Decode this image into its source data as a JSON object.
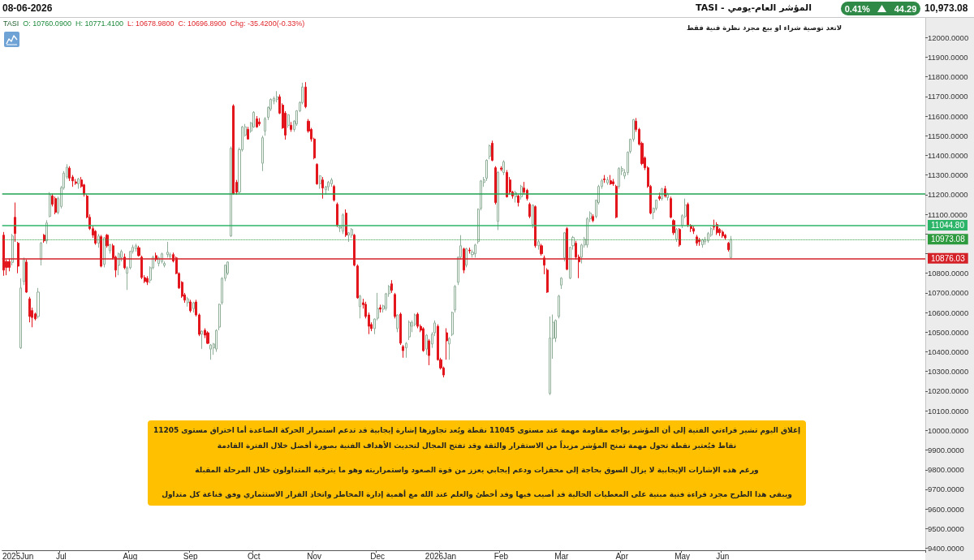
{
  "chart_data": {
    "type": "candlestick",
    "title": "المؤشر العام-يومي - TASI",
    "categories": [
      null,
      null,
      null,
      null,
      null,
      "2025Jun",
      null,
      null,
      null,
      null,
      null,
      null,
      null,
      null,
      null,
      null,
      null,
      null,
      null,
      null,
      "Jul",
      null,
      null,
      null,
      null,
      null,
      null,
      null,
      null,
      null,
      null,
      null,
      null,
      null,
      null,
      null,
      null,
      null,
      null,
      null,
      null,
      null,
      null,
      null,
      "Aug",
      null,
      null,
      null,
      null,
      null,
      null,
      null,
      null,
      null,
      null,
      null,
      null,
      null,
      null,
      null,
      null,
      null,
      null,
      null,
      null,
      "Sep",
      null,
      null,
      null,
      null,
      null,
      null,
      null,
      null,
      null,
      null,
      null,
      null,
      null,
      null,
      null,
      null,
      null,
      null,
      null,
      null,
      null,
      "Oct",
      null,
      null,
      null,
      null,
      null,
      null,
      null,
      null,
      null,
      null,
      null,
      null,
      null,
      null,
      null,
      null,
      null,
      null,
      null,
      null,
      "Nov",
      null,
      null,
      null,
      null,
      null,
      null,
      null,
      null,
      null,
      null,
      null,
      null,
      null,
      null,
      null,
      null,
      null,
      null,
      null,
      null,
      null,
      "Dec",
      null,
      null,
      null,
      null,
      null,
      null,
      null,
      null,
      null,
      null,
      null,
      null,
      null,
      null,
      null,
      null,
      null,
      null,
      null,
      null,
      null,
      "2026Jan",
      null,
      null,
      null,
      null,
      null,
      null,
      null,
      null,
      null,
      null,
      null,
      null,
      null,
      null,
      null,
      null,
      null,
      null,
      null,
      null,
      "Feb",
      null,
      null,
      null,
      null,
      null,
      null,
      null,
      null,
      null,
      null,
      null,
      null,
      null,
      null,
      null,
      null,
      null,
      null,
      null,
      null,
      "Mar",
      null,
      null,
      null,
      null,
      null,
      null,
      null,
      null,
      null,
      null,
      null,
      null,
      null,
      null,
      null,
      null,
      null,
      null,
      null,
      null,
      "Apr",
      null,
      null,
      null,
      null,
      null,
      null,
      null,
      null,
      null,
      null,
      null,
      null,
      null,
      null,
      null,
      null,
      null,
      null,
      null,
      null,
      "May",
      null,
      null,
      null,
      null,
      null,
      null,
      null,
      null,
      null,
      null,
      null,
      null,
      null,
      "Jun",
      null,
      null,
      null,
      null,
      null,
      null,
      null,
      null,
      null,
      null,
      null,
      null,
      null,
      null,
      null,
      null,
      null,
      null,
      null,
      null,
      null,
      null,
      null,
      null,
      null,
      null,
      null,
      null,
      null,
      null,
      null,
      null,
      null,
      null,
      null,
      null,
      null,
      null,
      null,
      null,
      null,
      null,
      null,
      null,
      null,
      null,
      null,
      null,
      null,
      null,
      null,
      null,
      null,
      null,
      null,
      null,
      null,
      null,
      null,
      null,
      null,
      null,
      null,
      null,
      null,
      null,
      null,
      null,
      null,
      null
    ],
    "ohlc": [
      [
        10994,
        11010,
        10787,
        10816
      ],
      [
        10860,
        10870,
        10790,
        10830
      ],
      [
        10860,
        10875,
        10810,
        10830
      ],
      [
        10855,
        11000,
        10840,
        10990
      ],
      [
        11085,
        11160,
        10960,
        11002
      ],
      [
        10953,
        10960,
        10800,
        10836
      ],
      [
        10420,
        10774,
        10415,
        10725
      ],
      [
        10758,
        10880,
        10740,
        10870
      ],
      [
        10857,
        10870,
        10700,
        10704
      ],
      [
        10670,
        10680,
        10550,
        10580
      ],
      [
        10610,
        10625,
        10525,
        10575
      ],
      [
        10593,
        10600,
        10560,
        10568
      ],
      [
        10580,
        10725,
        10570,
        10704
      ],
      [
        10870,
        10960,
        10840,
        10953
      ],
      [
        10994,
        11000,
        10955,
        10965
      ],
      [
        10965,
        11070,
        10950,
        11056
      ],
      [
        11089,
        11213,
        11085,
        11200
      ],
      [
        11193,
        11205,
        11140,
        11151
      ],
      [
        11180,
        11190,
        11100,
        11110
      ],
      [
        11110,
        11190,
        11100,
        11180
      ],
      [
        11140,
        11245,
        11130,
        11235
      ],
      [
        11235,
        11320,
        11225,
        11310
      ],
      [
        11290,
        11355,
        11280,
        11340
      ],
      [
        11335,
        11345,
        11270,
        11284
      ],
      [
        11290,
        11300,
        11240,
        11270
      ],
      [
        11265,
        11280,
        11250,
        11258
      ],
      [
        11255,
        11285,
        11230,
        11280
      ],
      [
        11275,
        11290,
        11235,
        11242
      ],
      [
        11250,
        11255,
        11190,
        11201
      ],
      [
        11193,
        11200,
        11080,
        11085
      ],
      [
        11085,
        11100,
        11020,
        11027
      ],
      [
        11027,
        11040,
        10980,
        10994
      ],
      [
        11014,
        11020,
        10945,
        10953
      ],
      [
        10953,
        11000,
        10930,
        10990
      ],
      [
        10986,
        10995,
        10830,
        10836
      ],
      [
        10845,
        10985,
        10830,
        10980
      ],
      [
        10994,
        11000,
        10930,
        10940
      ],
      [
        10915,
        10950,
        10900,
        10945
      ],
      [
        10940,
        10950,
        10870,
        10878
      ],
      [
        10882,
        10890,
        10780,
        10816
      ],
      [
        10840,
        10905,
        10790,
        10899
      ],
      [
        10880,
        10920,
        10860,
        10911
      ],
      [
        10882,
        10900,
        10820,
        10828
      ],
      [
        10800,
        10835,
        10715,
        10828
      ],
      [
        10828,
        10915,
        10820,
        10911
      ],
      [
        10911,
        10945,
        10900,
        10932
      ],
      [
        10925,
        10950,
        10910,
        10940
      ],
      [
        10930,
        10940,
        10885,
        10890
      ],
      [
        10882,
        10890,
        10770,
        10778
      ],
      [
        10778,
        10790,
        10750,
        10758
      ],
      [
        10774,
        10785,
        10740,
        10754
      ],
      [
        10765,
        10835,
        10750,
        10828
      ],
      [
        10828,
        10890,
        10820,
        10882
      ],
      [
        10890,
        10905,
        10860,
        10870
      ],
      [
        10850,
        10885,
        10835,
        10878
      ],
      [
        10860,
        10905,
        10850,
        10899
      ],
      [
        10840,
        10860,
        10830,
        10850
      ],
      [
        10895,
        10960,
        10880,
        10907
      ],
      [
        10885,
        10905,
        10870,
        10895
      ],
      [
        10895,
        10905,
        10855,
        10862
      ],
      [
        10878,
        10885,
        10795,
        10799
      ],
      [
        10799,
        10805,
        10720,
        10725
      ],
      [
        10754,
        10760,
        10675,
        10683
      ],
      [
        10690,
        10700,
        10650,
        10663
      ],
      [
        10650,
        10680,
        10630,
        10670
      ],
      [
        10654,
        10665,
        10600,
        10609
      ],
      [
        10620,
        10655,
        10600,
        10650
      ],
      [
        10654,
        10665,
        10580,
        10588
      ],
      [
        10588,
        10595,
        10480,
        10489
      ],
      [
        10490,
        10510,
        10415,
        10505
      ],
      [
        10510,
        10520,
        10470,
        10485
      ],
      [
        10497,
        10505,
        10440,
        10443
      ],
      [
        10414,
        10440,
        10360,
        10435
      ],
      [
        10420,
        10445,
        10385,
        10440
      ],
      [
        10414,
        10515,
        10400,
        10509
      ],
      [
        10526,
        10645,
        10510,
        10642
      ],
      [
        10650,
        10780,
        10640,
        10774
      ],
      [
        10774,
        10845,
        10760,
        10841
      ],
      [
        10800,
        10860,
        10790,
        10857
      ],
      [
        10990,
        11445,
        10985,
        11436
      ],
      [
        11652,
        11660,
        11200,
        11205
      ],
      [
        11263,
        11275,
        11200,
        11213
      ],
      [
        11213,
        11440,
        11205,
        11429
      ],
      [
        11429,
        11550,
        11420,
        11545
      ],
      [
        11503,
        11560,
        11495,
        11545
      ],
      [
        11532,
        11545,
        11480,
        11483
      ],
      [
        11524,
        11570,
        11515,
        11565
      ],
      [
        11545,
        11625,
        11540,
        11619
      ],
      [
        11586,
        11600,
        11540,
        11545
      ],
      [
        11570,
        11590,
        11550,
        11560
      ],
      [
        11360,
        11500,
        11320,
        11490
      ],
      [
        11524,
        11595,
        11500,
        11586
      ],
      [
        11594,
        11650,
        11580,
        11644
      ],
      [
        11636,
        11690,
        11625,
        11685
      ],
      [
        11677,
        11700,
        11660,
        11690
      ],
      [
        11685,
        11727,
        11670,
        11698
      ],
      [
        11698,
        11710,
        11610,
        11615
      ],
      [
        11656,
        11665,
        11535,
        11540
      ],
      [
        11615,
        11625,
        11480,
        11503
      ],
      [
        11553,
        11610,
        11540,
        11607
      ],
      [
        11553,
        11570,
        11520,
        11532
      ],
      [
        11532,
        11580,
        11520,
        11574
      ],
      [
        11560,
        11630,
        11550,
        11627
      ],
      [
        11627,
        11675,
        11620,
        11669
      ],
      [
        11669,
        11770,
        11660,
        11748
      ],
      [
        11748,
        11773,
        11640,
        11648
      ],
      [
        11574,
        11585,
        11515,
        11524
      ],
      [
        11532,
        11540,
        11470,
        11483
      ],
      [
        11483,
        11490,
        11380,
        11387
      ],
      [
        11354,
        11360,
        11250,
        11255
      ],
      [
        11255,
        11300,
        11230,
        11296
      ],
      [
        11275,
        11290,
        11180,
        11234
      ],
      [
        11225,
        11245,
        11200,
        11240
      ],
      [
        11240,
        11270,
        11220,
        11263
      ],
      [
        11255,
        11285,
        11240,
        11275
      ],
      [
        11242,
        11250,
        11165,
        11172
      ],
      [
        11151,
        11160,
        11035,
        11044
      ],
      [
        11030,
        11045,
        11010,
        11035
      ],
      [
        11014,
        11105,
        11000,
        11097
      ],
      [
        11106,
        11125,
        10985,
        10994
      ],
      [
        10994,
        11010,
        10960,
        11006
      ],
      [
        10994,
        11030,
        10980,
        11023
      ],
      [
        10994,
        11000,
        10835,
        10841
      ],
      [
        10837,
        10845,
        10670,
        10675
      ],
      [
        10630,
        10690,
        10570,
        10684
      ],
      [
        10650,
        10670,
        10620,
        10640
      ],
      [
        10642,
        10655,
        10570,
        10580
      ],
      [
        10588,
        10600,
        10490,
        10530
      ],
      [
        10539,
        10550,
        10505,
        10518
      ],
      [
        10518,
        10570,
        10490,
        10567
      ],
      [
        10571,
        10700,
        10560,
        10621
      ],
      [
        10625,
        10640,
        10600,
        10617
      ],
      [
        10617,
        10640,
        10600,
        10634
      ],
      [
        10621,
        10700,
        10610,
        10696
      ],
      [
        10696,
        10740,
        10680,
        10733
      ],
      [
        10746,
        10765,
        10700,
        10713
      ],
      [
        10692,
        10700,
        10570,
        10580
      ],
      [
        10518,
        10590,
        10500,
        10588
      ],
      [
        10592,
        10600,
        10435,
        10444
      ],
      [
        10427,
        10435,
        10370,
        10406
      ],
      [
        10420,
        10450,
        10370,
        10443
      ],
      [
        10476,
        10560,
        10460,
        10551
      ],
      [
        10530,
        10560,
        10500,
        10550
      ],
      [
        10540,
        10595,
        10530,
        10588
      ],
      [
        10592,
        10600,
        10520,
        10530
      ],
      [
        10530,
        10540,
        10500,
        10510
      ],
      [
        10518,
        10525,
        10400,
        10406
      ],
      [
        10414,
        10490,
        10385,
        10485
      ],
      [
        10456,
        10465,
        10332,
        10381
      ],
      [
        10440,
        10500,
        10420,
        10490
      ],
      [
        10497,
        10560,
        10480,
        10547
      ],
      [
        10530,
        10540,
        10355,
        10360
      ],
      [
        10360,
        10370,
        10310,
        10318
      ],
      [
        10318,
        10325,
        10270,
        10282
      ],
      [
        10497,
        10520,
        10360,
        10456
      ],
      [
        10440,
        10475,
        10360,
        10468
      ],
      [
        10489,
        10605,
        10480,
        10600
      ],
      [
        10613,
        10740,
        10600,
        10733
      ],
      [
        10754,
        10885,
        10740,
        10882
      ],
      [
        10882,
        10994,
        10870,
        10940
      ],
      [
        10924,
        10930,
        10800,
        10816
      ],
      [
        10841,
        10930,
        10830,
        10924
      ],
      [
        10918,
        10930,
        10900,
        10914
      ],
      [
        10895,
        10920,
        10880,
        10907
      ],
      [
        10899,
        10950,
        10880,
        10944
      ],
      [
        10961,
        11130,
        10950,
        11126
      ],
      [
        11130,
        11275,
        11120,
        11270
      ],
      [
        11262,
        11290,
        11240,
        11276
      ],
      [
        11284,
        11380,
        11270,
        11375
      ],
      [
        11395,
        11455,
        11380,
        11449
      ],
      [
        11462,
        11475,
        11370,
        11375
      ],
      [
        11337,
        11345,
        11150,
        11160
      ],
      [
        11064,
        11320,
        11020,
        11313
      ],
      [
        11335,
        11345,
        11320,
        11330
      ],
      [
        11313,
        11375,
        11300,
        11367
      ],
      [
        11313,
        11325,
        11185,
        11189
      ],
      [
        11275,
        11290,
        11200,
        11213
      ],
      [
        11213,
        11220,
        11180,
        11193
      ],
      [
        11189,
        11220,
        11160,
        11210
      ],
      [
        11193,
        11200,
        11140,
        11160
      ],
      [
        11189,
        11250,
        11175,
        11242
      ],
      [
        11234,
        11265,
        11200,
        11213
      ],
      [
        11222,
        11230,
        11170,
        11180
      ],
      [
        11151,
        11160,
        11080,
        11089
      ],
      [
        11048,
        11150,
        11030,
        11147
      ],
      [
        11139,
        11145,
        10930,
        10940
      ],
      [
        10940,
        10970,
        10920,
        10961
      ],
      [
        10940,
        10950,
        10890,
        10899
      ],
      [
        10878,
        10890,
        10795,
        10841
      ],
      [
        10816,
        10825,
        10700,
        10704
      ],
      [
        10188,
        10580,
        10180,
        10470
      ],
      [
        10468,
        10590,
        10365,
        10551
      ],
      [
        10470,
        10565,
        10450,
        10560
      ],
      [
        10580,
        10690,
        10570,
        10684
      ],
      [
        10740,
        10780,
        10720,
        10775
      ],
      [
        10878,
        11010,
        10860,
        11006
      ],
      [
        11027,
        11035,
        10815,
        10820
      ],
      [
        10775,
        10935,
        10770,
        10932
      ],
      [
        10940,
        10990,
        10920,
        10982
      ],
      [
        10953,
        10965,
        10870,
        10882
      ],
      [
        10882,
        10895,
        10775,
        10858
      ],
      [
        10882,
        10950,
        10850,
        10944
      ],
      [
        10944,
        10985,
        10930,
        10973
      ],
      [
        10944,
        11085,
        10930,
        11077
      ],
      [
        11077,
        11115,
        11060,
        11106
      ],
      [
        11089,
        11100,
        11060,
        11068
      ],
      [
        11089,
        11175,
        11080,
        11172
      ],
      [
        11160,
        11250,
        11150,
        11242
      ],
      [
        11242,
        11280,
        11230,
        11271
      ],
      [
        11280,
        11300,
        11260,
        11276
      ],
      [
        11260,
        11290,
        11250,
        11276
      ],
      [
        11271,
        11300,
        11250,
        11255
      ],
      [
        11266,
        11280,
        11245,
        11255
      ],
      [
        11242,
        11250,
        11080,
        11085
      ],
      [
        11242,
        11340,
        11230,
        11333
      ],
      [
        11320,
        11345,
        11300,
        11333
      ],
      [
        11295,
        11330,
        11280,
        11313
      ],
      [
        11313,
        11420,
        11300,
        11416
      ],
      [
        11420,
        11485,
        11410,
        11482
      ],
      [
        11482,
        11585,
        11470,
        11582
      ],
      [
        11574,
        11590,
        11520,
        11532
      ],
      [
        11532,
        11540,
        11450,
        11457
      ],
      [
        11461,
        11470,
        11350,
        11358
      ],
      [
        11387,
        11395,
        11325,
        11337
      ],
      [
        11337,
        11345,
        11235,
        11242
      ],
      [
        11242,
        11250,
        11100,
        11106
      ],
      [
        11110,
        11135,
        11075,
        11130
      ],
      [
        11130,
        11175,
        11120,
        11172
      ],
      [
        11190,
        11210,
        11170,
        11180
      ],
      [
        11180,
        11235,
        11170,
        11230
      ],
      [
        11230,
        11245,
        11185,
        11193
      ],
      [
        11185,
        11210,
        11170,
        11201
      ],
      [
        11180,
        11190,
        11080,
        11085
      ],
      [
        11068,
        11075,
        10995,
        11006
      ],
      [
        10973,
        11030,
        10960,
        11023
      ],
      [
        11023,
        11030,
        10935,
        10944
      ],
      [
        11044,
        11100,
        11030,
        11093
      ],
      [
        11089,
        11180,
        11080,
        11147
      ],
      [
        11151,
        11160,
        11035,
        11044
      ],
      [
        11044,
        11050,
        11010,
        11027
      ],
      [
        11027,
        11040,
        11000,
        11014
      ],
      [
        10985,
        10995,
        10940,
        10953
      ],
      [
        10970,
        10980,
        10940,
        10961
      ],
      [
        10945,
        10975,
        10930,
        10970
      ],
      [
        10960,
        10985,
        10945,
        10972
      ],
      [
        10965,
        11010,
        10955,
        11002
      ],
      [
        10994,
        11035,
        10985,
        11027
      ],
      [
        11040,
        11073,
        11020,
        11035
      ],
      [
        11048,
        11060,
        10995,
        11006
      ],
      [
        11023,
        11030,
        10990,
        11006
      ],
      [
        11010,
        11020,
        10980,
        10990
      ],
      [
        10994,
        11000,
        10970,
        10980
      ],
      [
        10953,
        10960,
        10910,
        10920
      ],
      [
        10880,
        10990,
        10876,
        10973.08
      ],
      null,
      null,
      null,
      null,
      null,
      null,
      null,
      null,
      null,
      null,
      null,
      null,
      null,
      null,
      null,
      null,
      null,
      null,
      null,
      null,
      null,
      null,
      null,
      null,
      null,
      null,
      null,
      null,
      null,
      null,
      null,
      null,
      null,
      null,
      null,
      null,
      null,
      null,
      null,
      null,
      null,
      null,
      null,
      null,
      null,
      null,
      null,
      null,
      null,
      null,
      null,
      null,
      null,
      null,
      null,
      null,
      null,
      null,
      null,
      null,
      null,
      null,
      null,
      null,
      null,
      null,
      null
    ],
    "ylim": [
      9390,
      12100
    ],
    "yticks": [
      {
        "value": 9400,
        "label": "9400.0000"
      },
      {
        "value": 9500,
        "label": "9500.0000"
      },
      {
        "value": 9600,
        "label": "9600.0000"
      },
      {
        "value": 9700,
        "label": "9700.0000"
      },
      {
        "value": 9800,
        "label": "9800.0000"
      },
      {
        "value": 9900,
        "label": "9900.0000"
      },
      {
        "value": 10000,
        "label": "10000.0000"
      },
      {
        "value": 10100,
        "label": "10100.0000"
      },
      {
        "value": 10200,
        "label": "10200.0000"
      },
      {
        "value": 10300,
        "label": "10300.0000"
      },
      {
        "value": 10400,
        "label": "10400.0000"
      },
      {
        "value": 10500,
        "label": "10500.0000"
      },
      {
        "value": 10600,
        "label": "10600.0000"
      },
      {
        "value": 10700,
        "label": "10700.0000"
      },
      {
        "value": 10800,
        "label": "10800.0000"
      },
      {
        "value": 10900,
        "label": null
      },
      {
        "value": 11000,
        "label": null
      },
      {
        "value": 11100,
        "label": "11100.0000"
      },
      {
        "value": 11200,
        "label": "11200.0000"
      },
      {
        "value": 11300,
        "label": "11300.0000"
      },
      {
        "value": 11400,
        "label": "11400.0000"
      },
      {
        "value": 11500,
        "label": "11500.0000"
      },
      {
        "value": 11600,
        "label": "11600.0000"
      },
      {
        "value": 11700,
        "label": "11700.0000"
      },
      {
        "value": 11800,
        "label": "11800.0000"
      },
      {
        "value": 11900,
        "label": "11900.0000"
      },
      {
        "value": 12000,
        "label": "12000.0000"
      }
    ],
    "ref_lines": [
      {
        "axis": "y",
        "value": 11205,
        "color": "#1fa351"
      },
      {
        "axis": "y",
        "value": 11044.8,
        "label": "11044.80",
        "color": "#2cb468"
      },
      {
        "axis": "y",
        "value": 10973.08,
        "label": "10973.08",
        "color": "#2e9a3e",
        "line_style": "dotted"
      },
      {
        "axis": "y",
        "value": 10876.03,
        "label": "10876.03",
        "color": "#d42128"
      }
    ],
    "annotations": [
      "08-06-2026",
      "0.41%",
      "44.29",
      "10,973.08",
      "TASI",
      "O: 10760.0900",
      "H: 10771.4100",
      "L: 10678.9800",
      "C: 10696.8900",
      "Chg: -35.4200(-0.33%)",
      "لاتعد توصية شراء او بيع مجرد نظرة فنية فقط",
      "إغلاق اليوم تشير قراءتي الفنية إلى أن المؤشر يواجه مقاومة مهمة عند مستوى 11045 نقطة ويُعد تجاوزها إشارة إيجابية قد تدعم استمرار الحركة الصاعدة أما اختراق مستوى 11205 نقاط فيُعتبر نقطة تحول مهمة تمنح المؤشر مزيداً من الاستقرار والثقة وقد تفتح المجال لتحديث الأهداف الفنية بصورة أفضل خلال الفترة القادمة",
      "ورغم هذه الإشارات الإيجابية لا يزال السوق بحاجة إلى محفزات ودعم إيجابي يعزز من قوة الصعود واستمراريته وهو ما يترقبه المتداولون خلال المرحلة المقبلة",
      "ويبقى هذا الطرح مجرد قراءة فنية مبنية على المعطيات الحالية قد أصيب فيها وقد أخطئ والعلم عند الله مع أهمية إدارة المخاطر واتخاذ القرار الاستثماري وفق قناعة كل متداول"
    ]
  }
}
